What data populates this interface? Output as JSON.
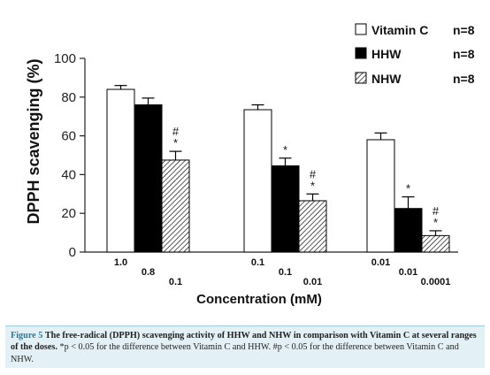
{
  "chart_data": {
    "type": "bar",
    "ylabel": "DPPH scavenging (%)",
    "xlabel": "Concentration (mM)",
    "ylim": [
      0,
      100
    ],
    "yticks": [
      0,
      20,
      40,
      60,
      80,
      100
    ],
    "legend_position": "top-right",
    "series": [
      {
        "name": "Vitamin C",
        "n_label": "n=8",
        "fill": "white",
        "values": [
          84,
          73.5,
          58
        ],
        "errors": [
          2,
          2.5,
          3.5
        ],
        "marks": [
          "",
          "",
          ""
        ]
      },
      {
        "name": "HHW",
        "n_label": "n=8",
        "fill": "black",
        "values": [
          76,
          44.5,
          22.5
        ],
        "errors": [
          3.5,
          4,
          6
        ],
        "marks": [
          "",
          "*",
          "*"
        ]
      },
      {
        "name": "NHW",
        "n_label": "n=8",
        "fill": "hatched",
        "values": [
          47.5,
          26.5,
          8.5
        ],
        "errors": [
          4.5,
          3.5,
          2.5
        ],
        "marks": [
          "#\n*",
          "#\n*",
          "#\n*"
        ]
      }
    ],
    "dose_labels": [
      [
        "1.0",
        "0.8",
        "0.1"
      ],
      [
        "0.1",
        "0.1",
        "0.01"
      ],
      [
        "0.01",
        "0.01",
        "0.0001"
      ]
    ]
  },
  "caption": {
    "label": "Figure 5",
    "title": "The free-radical (DPPH) scavenging activity of HHW and NHW in comparison with Vitamin C at several ranges of the doses.",
    "note": "*p < 0.05 for the difference between Vitamin C and HHW. #p < 0.05 for the difference between Vitamin C and NHW."
  }
}
